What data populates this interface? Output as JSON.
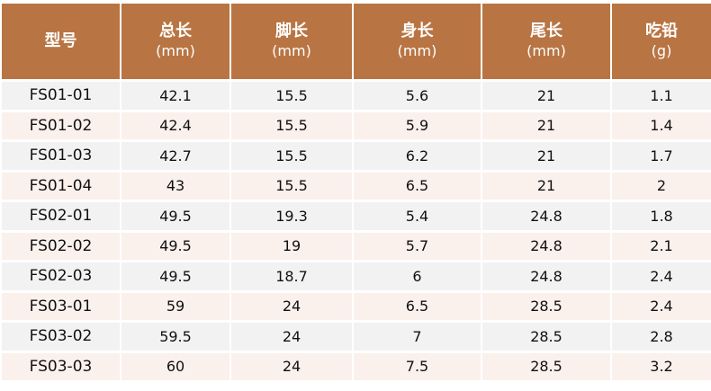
{
  "colors": {
    "header_bg": "#b87543",
    "row_odd": "#f2f2f2",
    "row_even": "#faf0ec"
  },
  "headers": [
    {
      "label": "型号",
      "unit": ""
    },
    {
      "label": "总长",
      "unit": "(mm)"
    },
    {
      "label": "脚长",
      "unit": "(mm)"
    },
    {
      "label": "身长",
      "unit": "(mm)"
    },
    {
      "label": "尾长",
      "unit": "(mm)"
    },
    {
      "label": "吃铅",
      "unit": "(g)"
    }
  ],
  "rows": [
    [
      "FS01-01",
      "42.1",
      "15.5",
      "5.6",
      "21",
      "1.1"
    ],
    [
      "FS01-02",
      "42.4",
      "15.5",
      "5.9",
      "21",
      "1.4"
    ],
    [
      "FS01-03",
      "42.7",
      "15.5",
      "6.2",
      "21",
      "1.7"
    ],
    [
      "FS01-04",
      "43",
      "15.5",
      "6.5",
      "21",
      "2"
    ],
    [
      "FS02-01",
      "49.5",
      "19.3",
      "5.4",
      "24.8",
      "1.8"
    ],
    [
      "FS02-02",
      "49.5",
      "19",
      "5.7",
      "24.8",
      "2.1"
    ],
    [
      "FS02-03",
      "49.5",
      "18.7",
      "6",
      "24.8",
      "2.4"
    ],
    [
      "FS03-01",
      "59",
      "24",
      "6.5",
      "28.5",
      "2.4"
    ],
    [
      "FS03-02",
      "59.5",
      "24",
      "7",
      "28.5",
      "2.8"
    ],
    [
      "FS03-03",
      "60",
      "24",
      "7.5",
      "28.5",
      "3.2"
    ]
  ]
}
